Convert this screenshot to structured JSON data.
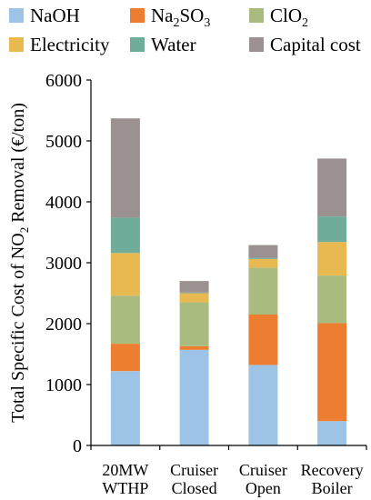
{
  "chart_data": {
    "type": "bar",
    "stacked": true,
    "categories": [
      [
        "20MW",
        "WTHP"
      ],
      [
        "Cruiser",
        "Closed"
      ],
      [
        "Cruiser",
        "Open"
      ],
      [
        "Recovery",
        "Boiler"
      ]
    ],
    "ylabel": {
      "prefix": "Total Specific Cost of NO",
      "sub": "2",
      "suffix": " Removal (€/ton)"
    },
    "ylim": [
      0,
      6000
    ],
    "yticks": [
      0,
      1000,
      2000,
      3000,
      4000,
      5000,
      6000
    ],
    "grid": false,
    "legend_position": "top",
    "series": [
      {
        "name": "NaOH",
        "label_parts": [
          [
            "NaOH",
            false
          ]
        ],
        "color": "#9dc3e6",
        "values": [
          1220,
          1570,
          1320,
          400
        ]
      },
      {
        "name": "Na2SO3",
        "label_parts": [
          [
            "Na",
            false
          ],
          [
            "2",
            true
          ],
          [
            "SO",
            false
          ],
          [
            "3",
            true
          ]
        ],
        "color": "#ed7d31",
        "values": [
          450,
          60,
          830,
          1610
        ]
      },
      {
        "name": "ClO2",
        "label_parts": [
          [
            "ClO",
            false
          ],
          [
            "2",
            true
          ]
        ],
        "color": "#a9bb7e",
        "values": [
          790,
          720,
          770,
          780
        ]
      },
      {
        "name": "Electricity",
        "label_parts": [
          [
            "Electricity",
            false
          ]
        ],
        "color": "#e8b851",
        "values": [
          700,
          150,
          140,
          550
        ]
      },
      {
        "name": "Water",
        "label_parts": [
          [
            "Water",
            false
          ]
        ],
        "color": "#6fac9a",
        "values": [
          580,
          10,
          20,
          420
        ]
      },
      {
        "name": "Capital cost",
        "label_parts": [
          [
            "Capital cost",
            false
          ]
        ],
        "color": "#9c9191",
        "values": [
          1630,
          190,
          210,
          950
        ]
      }
    ]
  }
}
